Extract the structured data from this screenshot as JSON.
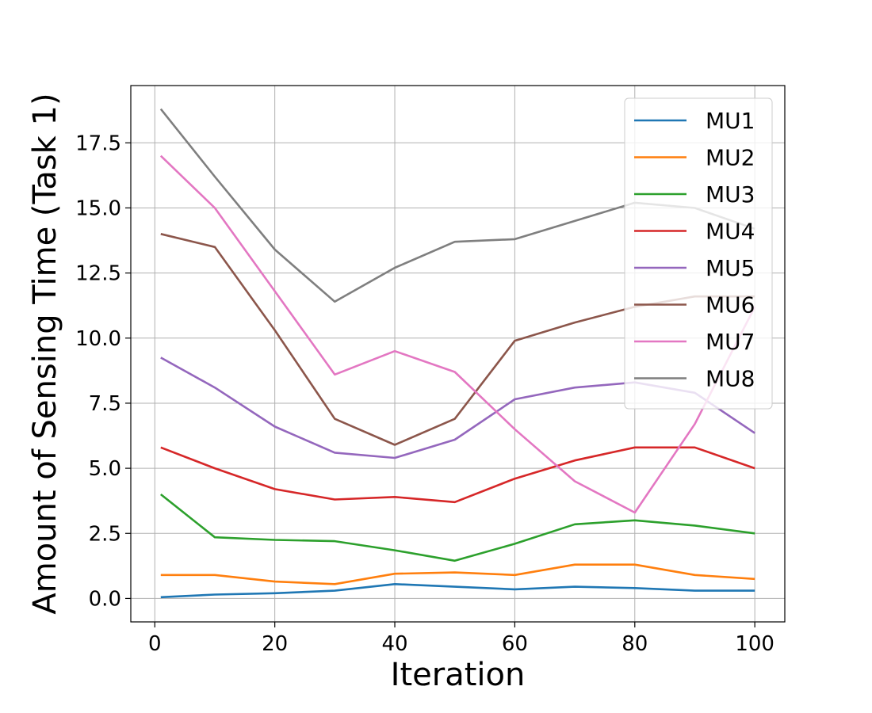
{
  "chart_data": {
    "type": "line",
    "title": "",
    "xlabel": "Iteration",
    "ylabel": "Amount of Sensing Time (Task 1)",
    "xlim": [
      -4,
      105
    ],
    "ylim": [
      -0.9,
      19.7
    ],
    "xticks": [
      0,
      20,
      40,
      60,
      80,
      100
    ],
    "yticks": [
      0.0,
      2.5,
      5.0,
      7.5,
      10.0,
      12.5,
      15.0,
      17.5
    ],
    "ytick_labels": [
      "0.0",
      "2.5",
      "5.0",
      "7.5",
      "10.0",
      "12.5",
      "15.0",
      "17.5"
    ],
    "grid": true,
    "legend_position": "top-right",
    "x": [
      1,
      10,
      20,
      30,
      40,
      50,
      60,
      70,
      80,
      90,
      100
    ],
    "series": [
      {
        "name": "MU1",
        "color": "#1f77b4",
        "values": [
          0.05,
          0.15,
          0.2,
          0.3,
          0.55,
          0.45,
          0.35,
          0.45,
          0.4,
          0.3,
          0.3
        ]
      },
      {
        "name": "MU2",
        "color": "#ff7f0e",
        "values": [
          0.9,
          0.9,
          0.65,
          0.55,
          0.95,
          1.0,
          0.9,
          1.3,
          1.3,
          0.9,
          0.75
        ]
      },
      {
        "name": "MU3",
        "color": "#2ca02c",
        "values": [
          4.0,
          2.35,
          2.25,
          2.2,
          1.85,
          1.45,
          2.1,
          2.85,
          3.0,
          2.8,
          2.5
        ]
      },
      {
        "name": "MU4",
        "color": "#d62728",
        "values": [
          5.8,
          5.0,
          4.2,
          3.8,
          3.9,
          3.7,
          4.6,
          5.3,
          5.8,
          5.8,
          5.0
        ]
      },
      {
        "name": "MU5",
        "color": "#9467bd",
        "values": [
          9.25,
          8.1,
          6.6,
          5.6,
          5.4,
          6.1,
          7.65,
          8.1,
          8.3,
          7.9,
          6.35
        ]
      },
      {
        "name": "MU6",
        "color": "#8c564b",
        "values": [
          14.0,
          13.5,
          10.3,
          6.9,
          5.9,
          6.9,
          9.9,
          10.6,
          11.2,
          11.6,
          11.6
        ]
      },
      {
        "name": "MU7",
        "color": "#e377c2",
        "values": [
          17.0,
          15.0,
          11.8,
          8.6,
          9.5,
          8.7,
          6.5,
          4.5,
          3.3,
          6.7,
          11.2
        ]
      },
      {
        "name": "MU8",
        "color": "#7f7f7f",
        "values": [
          18.8,
          16.2,
          13.4,
          11.4,
          12.7,
          13.7,
          13.8,
          14.5,
          15.2,
          15.0,
          14.2
        ]
      }
    ]
  }
}
